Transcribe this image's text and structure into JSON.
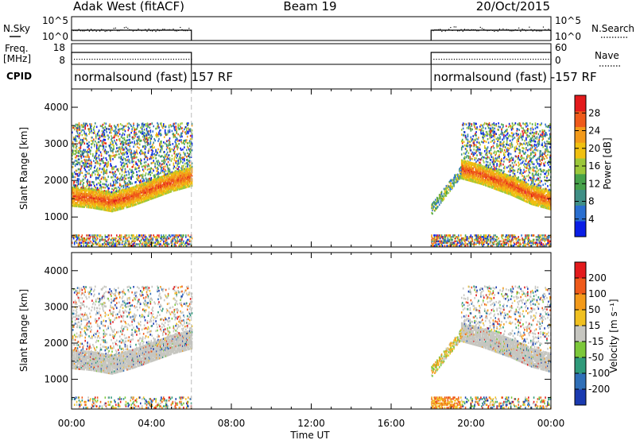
{
  "header": {
    "station": "Adak West (fitACF)",
    "beam": "Beam 19",
    "date": "20/Oct/2015"
  },
  "strip_labels": {
    "nsky": "N.Sky",
    "nsky_ticks": [
      "10^5",
      "10^0"
    ],
    "nsearch": "N.Search",
    "nsearch_ticks": [
      "10^5",
      "10^0"
    ],
    "freq_line1": "Freq.",
    "freq_line2": "[MHz]",
    "freq_ticks": [
      "18",
      "8"
    ],
    "nave": "Nave",
    "nave_ticks": [
      "60",
      "0"
    ],
    "cpid": "CPID"
  },
  "cpid_segments": [
    {
      "text": "normalsound (fast) 157 RF",
      "start_h": 0.0,
      "end_h": 6.0
    },
    {
      "text": "normalsound (fast) -157 RF",
      "start_h": 18.0,
      "end_h": 24.0
    }
  ],
  "chart_data": [
    {
      "type": "heatmap",
      "panel": "power",
      "ylabel": "Slant Range [km]",
      "xlabel": "Time UT",
      "x_ticks": [
        "00:00",
        "04:00",
        "08:00",
        "12:00",
        "16:00",
        "20:00",
        "00:00"
      ],
      "xlim_hours": [
        0,
        24
      ],
      "y_ticks": [
        "1000",
        "2000",
        "3000",
        "4000"
      ],
      "ylim_km": [
        180,
        4500
      ],
      "colorbar_label": "Power [dB]",
      "colorbar_ticks": [
        "4",
        "8",
        "12",
        "16",
        "20",
        "24",
        "28"
      ],
      "colorbar_colors": [
        "#0a1ee6",
        "#2a6fd0",
        "#3f8f86",
        "#46a24a",
        "#9cc83a",
        "#f0c010",
        "#f39a1a",
        "#ef5a1a",
        "#e31a1c"
      ],
      "data_coverage_hours": [
        [
          0.0,
          6.0
        ],
        [
          18.0,
          24.0
        ]
      ],
      "main_band_km": [
        [
          0.0,
          1550
        ],
        [
          1.0,
          1500
        ],
        [
          2.0,
          1400
        ],
        [
          3.0,
          1550
        ],
        [
          4.0,
          1750
        ],
        [
          5.0,
          1950
        ],
        [
          6.0,
          2100
        ],
        [
          18.0,
          1200
        ],
        [
          19.5,
          2300
        ],
        [
          20.5,
          2150
        ],
        [
          22.0,
          1850
        ],
        [
          23.0,
          1600
        ],
        [
          24.0,
          1450
        ]
      ]
    },
    {
      "type": "heatmap",
      "panel": "velocity",
      "ylabel": "Slant Range [km]",
      "xlabel": "Time UT",
      "x_ticks": [
        "00:00",
        "04:00",
        "08:00",
        "12:00",
        "16:00",
        "20:00",
        "00:00"
      ],
      "xlim_hours": [
        0,
        24
      ],
      "y_ticks": [
        "1000",
        "2000",
        "3000",
        "4000"
      ],
      "ylim_km": [
        180,
        4500
      ],
      "colorbar_label": "Velocity [m s⁻¹]",
      "colorbar_ticks": [
        "200",
        "100",
        "50",
        "15",
        "-15",
        "-50",
        "-100",
        "-200"
      ],
      "colorbar_colors": [
        "#1a3ab0",
        "#2f6fb8",
        "#2f9a7a",
        "#7cc83a",
        "#c6c6c0",
        "#f0c020",
        "#f39a1a",
        "#ef5a1a",
        "#e31a1c"
      ],
      "ground_scatter_color": "#c6c6c0",
      "data_coverage_hours": [
        [
          0.0,
          6.0
        ],
        [
          18.0,
          24.0
        ]
      ]
    }
  ]
}
